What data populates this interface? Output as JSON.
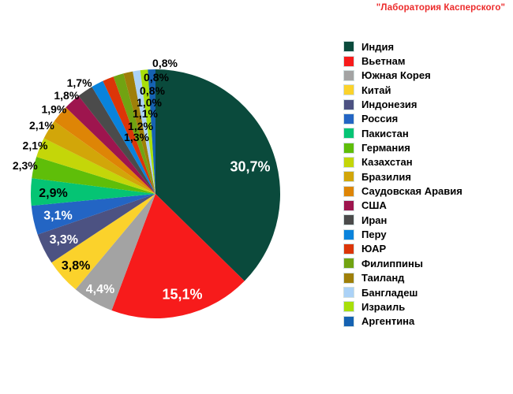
{
  "chart_data": {
    "type": "pie",
    "title": "\"Лаборатория Касперского\"",
    "title_color": "#EC2A2A",
    "legend_position": "right",
    "value_unit": "%",
    "decimal_separator": ",",
    "series": [
      {
        "name": "Индия",
        "value": 30.7,
        "display": "30,7%",
        "color": "#0A4A3C"
      },
      {
        "name": "Вьетнам",
        "value": 15.1,
        "display": "15,1%",
        "color": "#F71B1B"
      },
      {
        "name": "Южная Корея",
        "value": 4.4,
        "display": "4,4%",
        "color": "#A3A3A3"
      },
      {
        "name": "Китай",
        "value": 3.8,
        "display": "3,8%",
        "color": "#FBD22B"
      },
      {
        "name": "Индонезия",
        "value": 3.3,
        "display": "3,3%",
        "color": "#4C5282"
      },
      {
        "name": "Россия",
        "value": 3.1,
        "display": "3,1%",
        "color": "#2365C4"
      },
      {
        "name": "Пакистан",
        "value": 2.9,
        "display": "2,9%",
        "color": "#05C474"
      },
      {
        "name": "Германия",
        "value": 2.3,
        "display": "2,3%",
        "color": "#5FBE09"
      },
      {
        "name": "Казахстан",
        "value": 2.1,
        "display": "2,1%",
        "color": "#C4D609"
      },
      {
        "name": "Бразилия",
        "value": 2.1,
        "display": "2,1%",
        "color": "#D2A609"
      },
      {
        "name": "Саудовская Аравия",
        "value": 1.9,
        "display": "1,9%",
        "color": "#DE8506"
      },
      {
        "name": "США",
        "value": 1.8,
        "display": "1,8%",
        "color": "#9E154E"
      },
      {
        "name": "Иран",
        "value": 1.7,
        "display": "1,7%",
        "color": "#4B4B4B"
      },
      {
        "name": "Перу",
        "value": 1.3,
        "display": "1,3%",
        "color": "#0983DC"
      },
      {
        "name": "ЮАР",
        "value": 1.2,
        "display": "1,2%",
        "color": "#DC3508"
      },
      {
        "name": "Филиппины",
        "value": 1.1,
        "display": "1,1%",
        "color": "#71A312"
      },
      {
        "name": "Таиланд",
        "value": 1.0,
        "display": "1,0%",
        "color": "#9F7F09"
      },
      {
        "name": "Бангладеш",
        "value": 0.8,
        "display": "0,8%",
        "color": "#ABD2F7"
      },
      {
        "name": "Израиль",
        "value": 0.8,
        "display": "0,8%",
        "color": "#A8DF0A"
      },
      {
        "name": "Аргентина",
        "value": 0.8,
        "display": "0,8%",
        "color": "#1562B2"
      }
    ]
  }
}
